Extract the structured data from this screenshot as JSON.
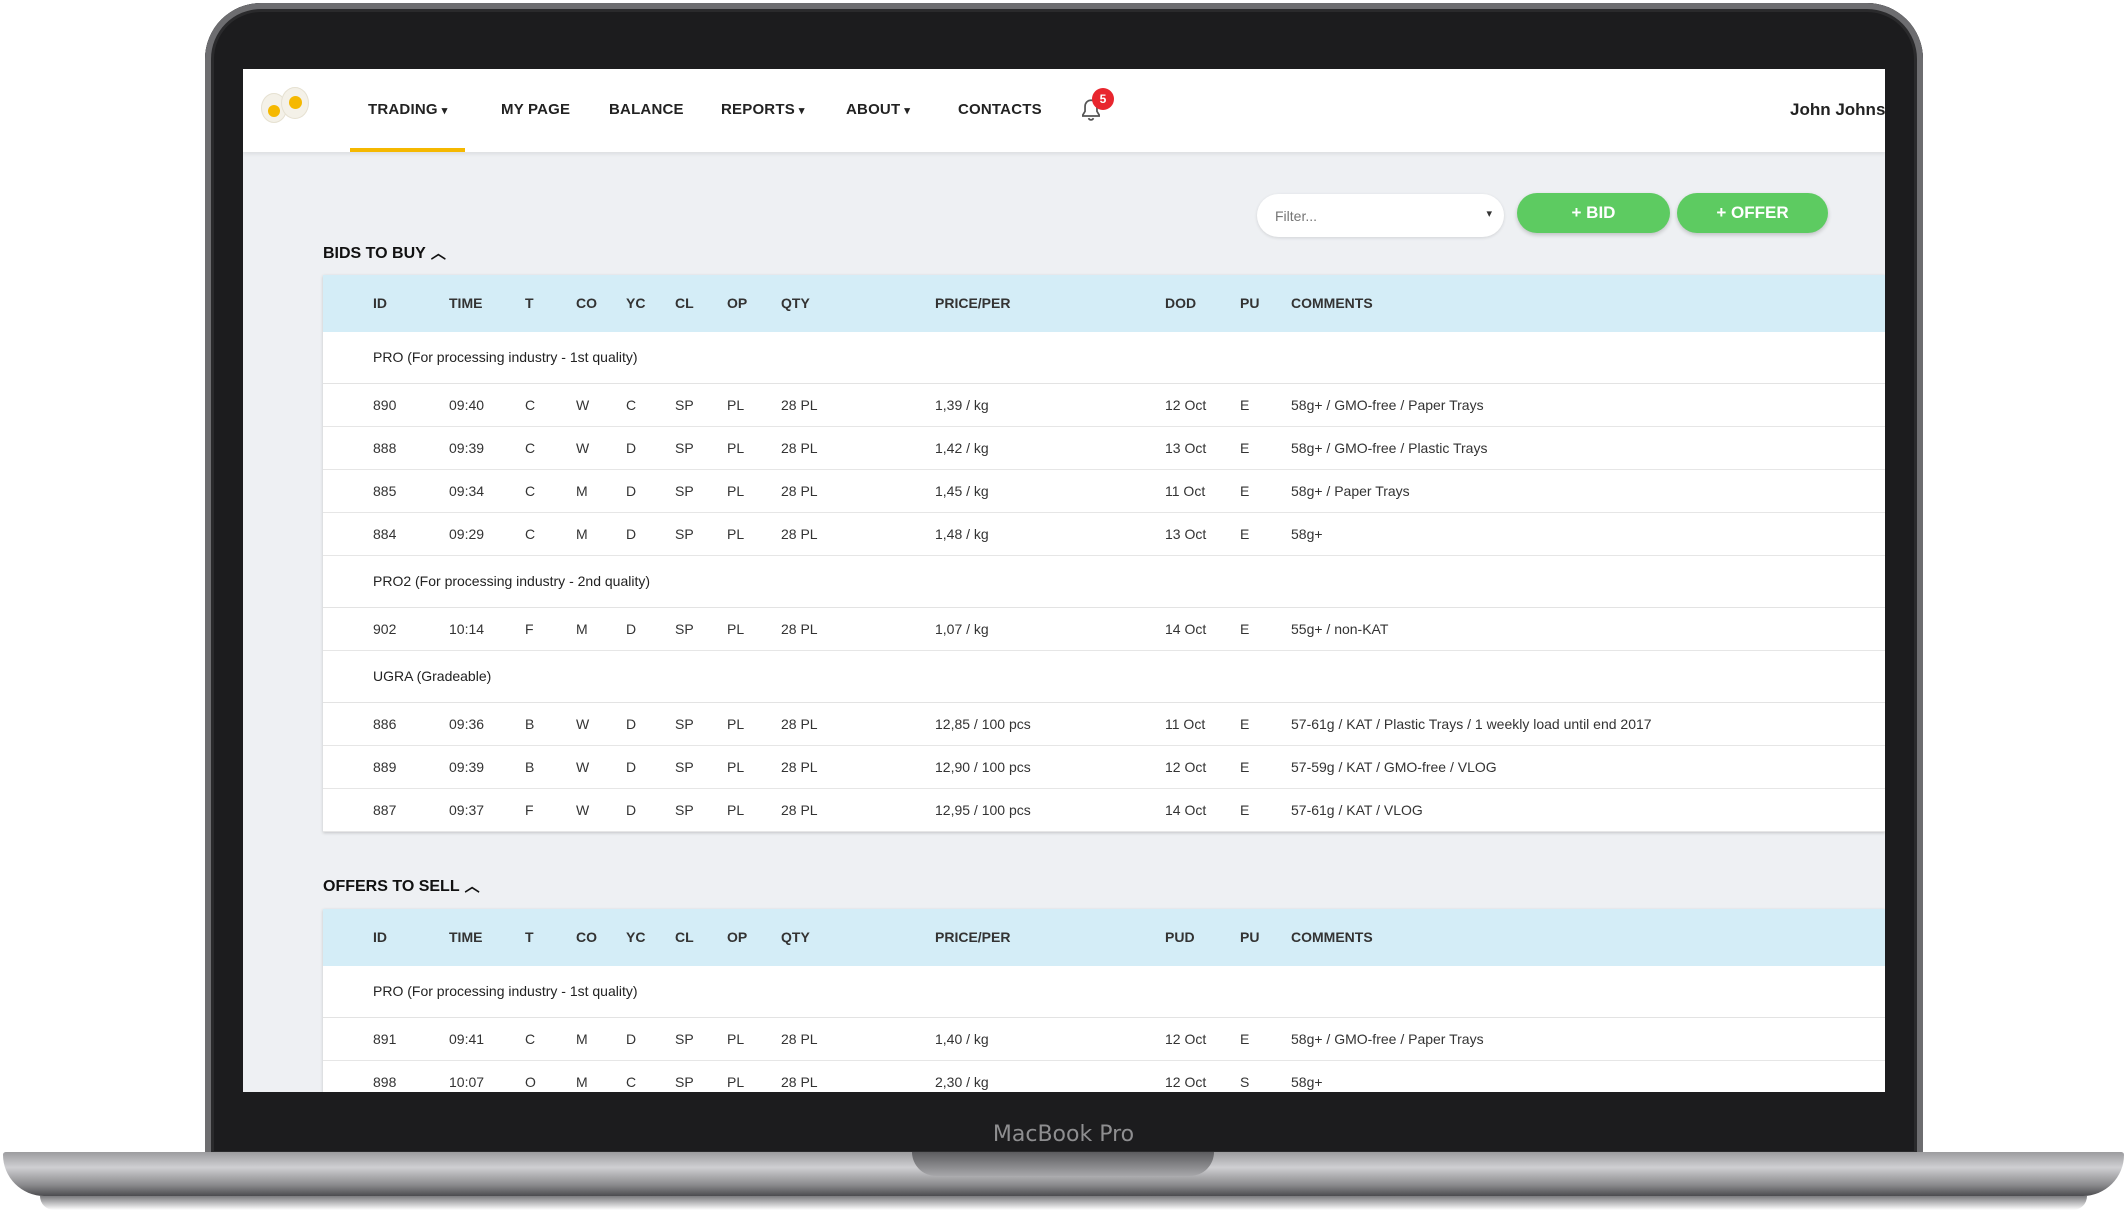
{
  "device": {
    "label": "MacBook Pro"
  },
  "nav": {
    "items": [
      {
        "label": "TRADING",
        "dropdown": true
      },
      {
        "label": "MY PAGE",
        "dropdown": false
      },
      {
        "label": "BALANCE",
        "dropdown": false
      },
      {
        "label": "REPORTS",
        "dropdown": true
      },
      {
        "label": "ABOUT",
        "dropdown": true
      },
      {
        "label": "CONTACTS",
        "dropdown": false
      }
    ],
    "notifications": "5",
    "user": "John Johns"
  },
  "controls": {
    "filter_placeholder": "Filter...",
    "bid_label": "+ BID",
    "offer_label": "+ OFFER"
  },
  "bids": {
    "title": "BIDS TO BUY",
    "columns": [
      "ID",
      "TIME",
      "T",
      "CO",
      "YC",
      "CL",
      "OP",
      "QTY",
      "PRICE/PER",
      "DOD",
      "PU",
      "COMMENTS"
    ],
    "groups": [
      {
        "label": "PRO (For processing industry - 1st quality)",
        "rows": [
          [
            "890",
            "09:40",
            "C",
            "W",
            "C",
            "SP",
            "PL",
            "28 PL",
            "1,39 / kg",
            "12 Oct",
            "E",
            "58g+ / GMO-free / Paper Trays"
          ],
          [
            "888",
            "09:39",
            "C",
            "W",
            "D",
            "SP",
            "PL",
            "28 PL",
            "1,42 / kg",
            "13 Oct",
            "E",
            "58g+ / GMO-free / Plastic Trays"
          ],
          [
            "885",
            "09:34",
            "C",
            "M",
            "D",
            "SP",
            "PL",
            "28 PL",
            "1,45 / kg",
            "11 Oct",
            "E",
            "58g+ / Paper Trays"
          ],
          [
            "884",
            "09:29",
            "C",
            "M",
            "D",
            "SP",
            "PL",
            "28 PL",
            "1,48 / kg",
            "13 Oct",
            "E",
            "58g+"
          ]
        ]
      },
      {
        "label": "PRO2 (For processing industry - 2nd quality)",
        "rows": [
          [
            "902",
            "10:14",
            "F",
            "M",
            "D",
            "SP",
            "PL",
            "28 PL",
            "1,07 / kg",
            "14 Oct",
            "E",
            "55g+ / non-KAT"
          ]
        ]
      },
      {
        "label": "UGRA (Gradeable)",
        "rows": [
          [
            "886",
            "09:36",
            "B",
            "W",
            "D",
            "SP",
            "PL",
            "28 PL",
            "12,85 / 100 pcs",
            "11 Oct",
            "E",
            "57-61g / KAT / Plastic Trays / 1 weekly load until end 2017"
          ],
          [
            "889",
            "09:39",
            "B",
            "W",
            "D",
            "SP",
            "PL",
            "28 PL",
            "12,90 / 100 pcs",
            "12 Oct",
            "E",
            "57-59g / KAT / GMO-free / VLOG"
          ],
          [
            "887",
            "09:37",
            "F",
            "W",
            "D",
            "SP",
            "PL",
            "28 PL",
            "12,95 / 100 pcs",
            "14 Oct",
            "E",
            "57-61g / KAT / VLOG"
          ]
        ]
      }
    ]
  },
  "offers": {
    "title": "OFFERS TO SELL",
    "columns": [
      "ID",
      "TIME",
      "T",
      "CO",
      "YC",
      "CL",
      "OP",
      "QTY",
      "PRICE/PER",
      "PUD",
      "PU",
      "COMMENTS"
    ],
    "groups": [
      {
        "label": "PRO (For processing industry - 1st quality)",
        "rows": [
          [
            "891",
            "09:41",
            "C",
            "M",
            "D",
            "SP",
            "PL",
            "28 PL",
            "1,40 / kg",
            "12 Oct",
            "E",
            "58g+ / GMO-free / Paper Trays"
          ],
          [
            "898",
            "10:07",
            "O",
            "M",
            "C",
            "SP",
            "PL",
            "28 PL",
            "2,30 / kg",
            "12 Oct",
            "S",
            "58g+"
          ]
        ]
      }
    ]
  },
  "colors": {
    "accent": "#f5b800",
    "button": "#5dcb61",
    "header_row": "#d4edf7",
    "badge": "#e8262e"
  }
}
